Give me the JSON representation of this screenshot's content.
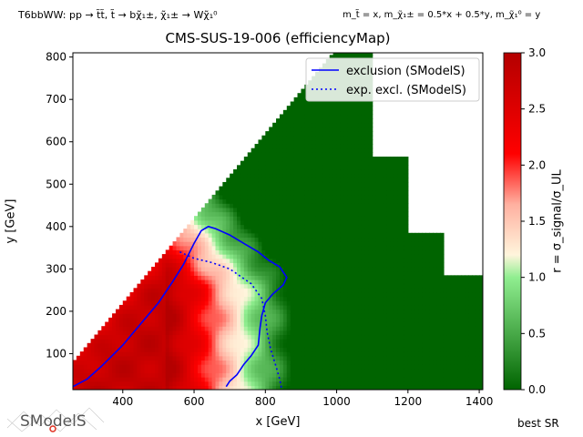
{
  "header": {
    "process_text": "T6bbWW: pp → t̃t̃, t̃ → bχ̃₁±, χ̃₁± → Wχ̃₁⁰",
    "mass_text": "m_t̃ = x, m_χ̃₁± = 0.5*x + 0.5*y, m_χ̃₁⁰ = y"
  },
  "chart_data": {
    "type": "heatmap",
    "title": "CMS-SUS-19-006 (efficiencyMap)",
    "xlabel": "x [GeV]",
    "ylabel": "y [GeV]",
    "colorbar_label": "r = σ_signal/σ_UL",
    "xlim": [
      260,
      1410
    ],
    "ylim": [
      15,
      810
    ],
    "xticks": [
      400,
      600,
      800,
      1000,
      1200,
      1400
    ],
    "yticks": [
      100,
      200,
      300,
      400,
      500,
      600,
      700,
      800
    ],
    "colorbar_range": [
      0,
      3
    ],
    "colorbar_ticks": [
      0.0,
      0.5,
      1.0,
      1.5,
      2.0,
      2.5,
      3.0
    ],
    "colorscale": [
      "#006400",
      "#90ee90",
      "#fff5dc",
      "#ff0000",
      "#b40000"
    ],
    "legend_position": "top-right",
    "legend": [
      {
        "label": "exclusion (SModelS)",
        "style": "solid",
        "color": "#0000ff"
      },
      {
        "label": "exp. excl. (SModelS)",
        "style": "dotted",
        "color": "#0000ff"
      }
    ],
    "exclusion_contour": [
      [
        260,
        22
      ],
      [
        300,
        40
      ],
      [
        340,
        70
      ],
      [
        400,
        120
      ],
      [
        450,
        170
      ],
      [
        500,
        220
      ],
      [
        540,
        270
      ],
      [
        570,
        310
      ],
      [
        600,
        360
      ],
      [
        620,
        390
      ],
      [
        640,
        400
      ],
      [
        660,
        395
      ],
      [
        700,
        380
      ],
      [
        740,
        360
      ],
      [
        780,
        340
      ],
      [
        810,
        320
      ],
      [
        840,
        305
      ],
      [
        860,
        280
      ],
      [
        850,
        262
      ],
      [
        820,
        240
      ],
      [
        800,
        220
      ],
      [
        790,
        190
      ],
      [
        785,
        160
      ],
      [
        780,
        120
      ],
      [
        760,
        95
      ],
      [
        740,
        75
      ],
      [
        720,
        50
      ],
      [
        700,
        35
      ],
      [
        690,
        22
      ]
    ],
    "expected_contour": [
      [
        560,
        340
      ],
      [
        600,
        325
      ],
      [
        650,
        315
      ],
      [
        700,
        300
      ],
      [
        760,
        265
      ],
      [
        790,
        230
      ],
      [
        800,
        190
      ],
      [
        805,
        150
      ],
      [
        815,
        110
      ],
      [
        830,
        70
      ],
      [
        840,
        40
      ],
      [
        845,
        20
      ]
    ],
    "other_text": "best SR",
    "logo_text": "SModelS"
  }
}
